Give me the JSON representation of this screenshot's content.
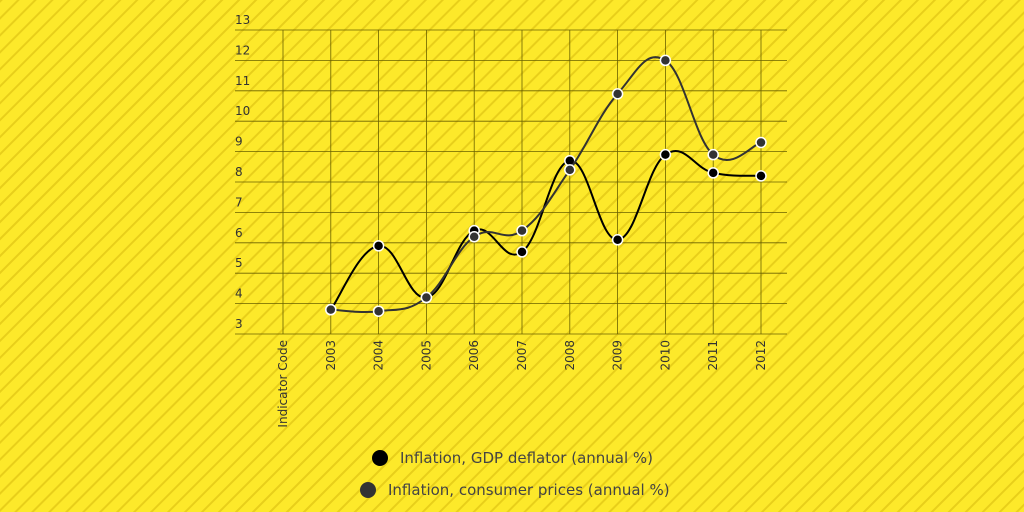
{
  "chart_data": {
    "type": "line",
    "categories": [
      "Indicator Code",
      "2003",
      "2004",
      "2005",
      "2006",
      "2007",
      "2008",
      "2009",
      "2010",
      "2011",
      "2012"
    ],
    "series": [
      {
        "name": "Inflation, GDP deflator (annual %)",
        "color": "#000000",
        "values": [
          null,
          3.8,
          5.9,
          4.2,
          6.4,
          5.7,
          8.7,
          6.1,
          8.9,
          8.3,
          8.2
        ]
      },
      {
        "name": "Inflation, consumer prices (annual %)",
        "color": "#333333",
        "values": [
          null,
          3.8,
          3.75,
          4.2,
          6.2,
          6.4,
          8.4,
          10.9,
          12.0,
          8.9,
          9.3
        ]
      }
    ],
    "ylim": [
      3,
      13
    ],
    "yticks": [
      3,
      4,
      5,
      6,
      7,
      8,
      9,
      10,
      11,
      12,
      13
    ],
    "grid": true,
    "legend": "bottom"
  }
}
